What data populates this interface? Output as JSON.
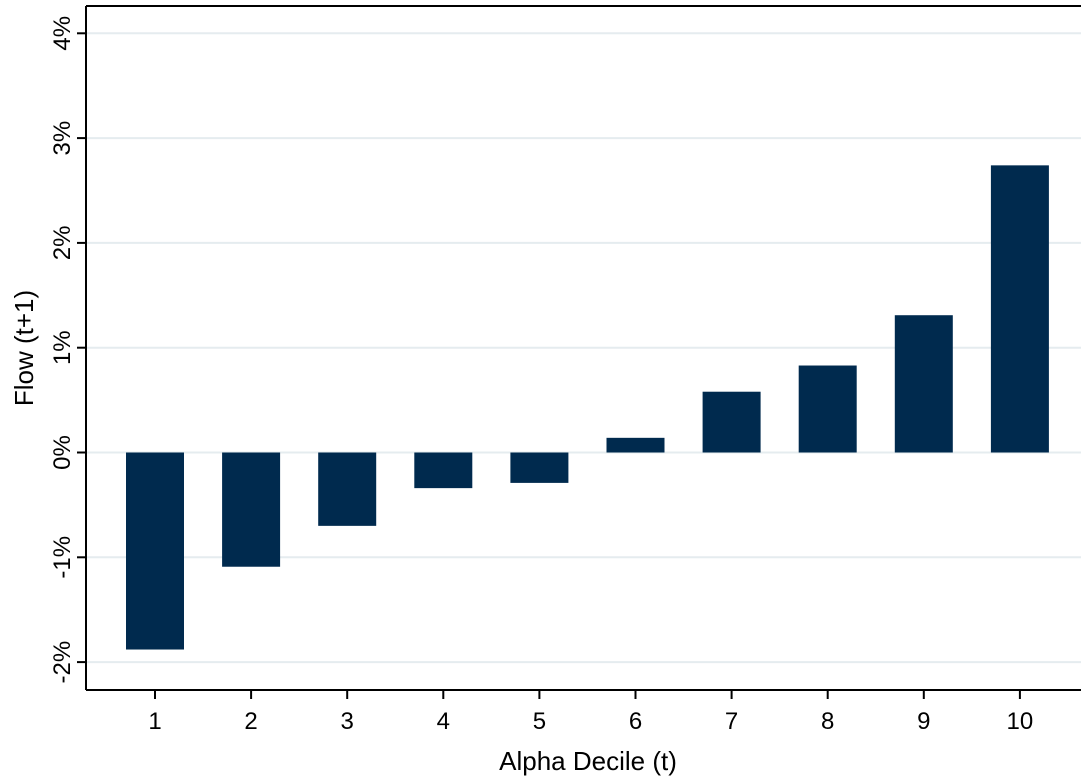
{
  "chart_data": {
    "type": "bar",
    "title": "",
    "xlabel": "Alpha Decile (t)",
    "ylabel": "Flow (t+1)",
    "categories": [
      "1",
      "2",
      "3",
      "4",
      "5",
      "6",
      "7",
      "8",
      "9",
      "10"
    ],
    "values": [
      -1.88,
      -1.09,
      -0.7,
      -0.34,
      -0.29,
      0.14,
      0.58,
      0.83,
      1.31,
      2.74
    ],
    "value_unit": "%",
    "ylim": [
      -2.25,
      4.25
    ],
    "yticks": [
      -2,
      -1,
      0,
      1,
      2,
      3,
      4
    ],
    "ytick_labels": [
      "-2%",
      "-1%",
      "0%",
      "1%",
      "2%",
      "3%",
      "4%"
    ],
    "grid": "horizontal",
    "legend": "none",
    "bar_color": "#002A4E",
    "grid_color": "#E5ECEF"
  }
}
